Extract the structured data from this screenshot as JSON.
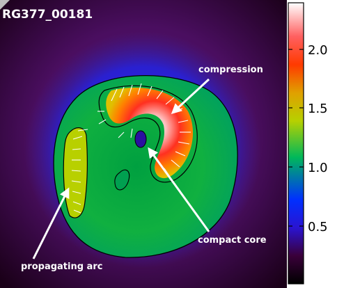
{
  "image": {
    "id_label": "RG377_00181",
    "annotations": {
      "compression": "compression",
      "compact_core": "compact core",
      "propagating_arc": "propagating arc"
    }
  },
  "colorbar": {
    "ticks": [
      "2.0",
      "1.5",
      "1.0",
      "0.5"
    ],
    "colormap": [
      "#000000",
      "#3a003a",
      "#2a14d2",
      "#00b85a",
      "#b7d000",
      "#e0a000",
      "#ff3a00",
      "#ff6060",
      "#ffffff"
    ]
  }
}
